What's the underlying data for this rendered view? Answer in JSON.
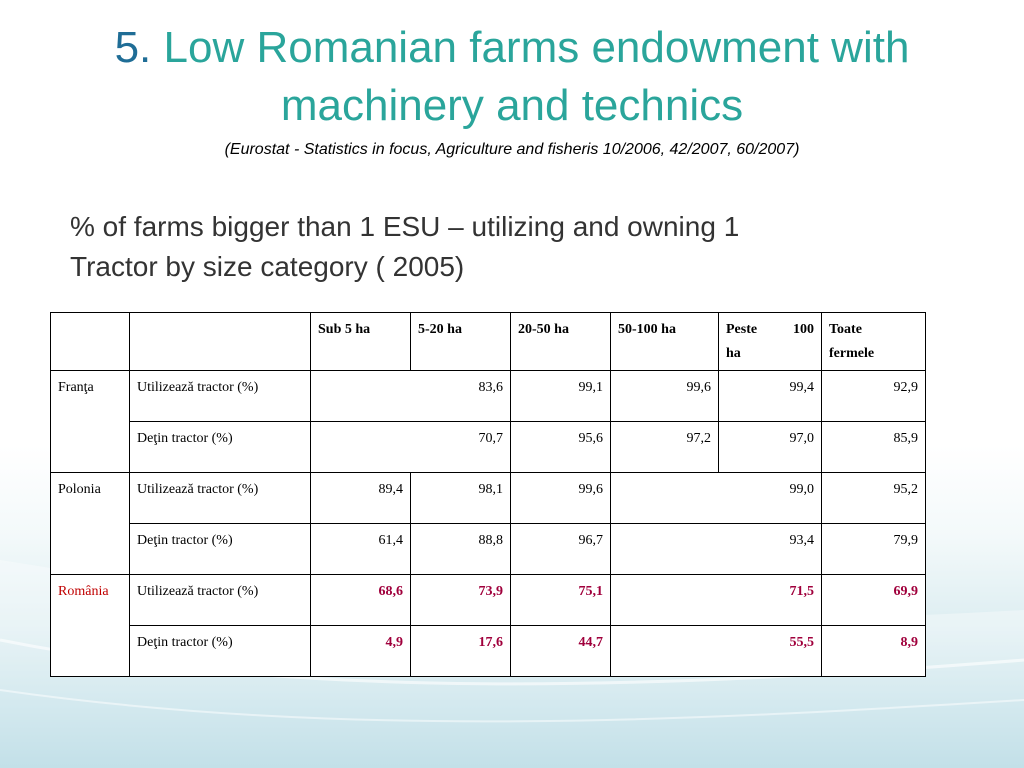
{
  "slide": {
    "title_number": "5.",
    "title_line1": "Low Romanian farms endowment with",
    "title_line2": "machinery and technics",
    "source": "(Eurostat - Statistics in focus, Agriculture and fisheris 10/2006, 42/2007, 60/2007)",
    "subtitle_line1": "% of farms bigger than 1 ESU – utilizing and owning 1",
    "subtitle_line2": "Tractor by size category ( 2005)"
  },
  "table": {
    "headers": [
      "",
      "",
      "Sub 5 ha",
      "5-20 ha",
      "20-50 ha",
      "50-100 ha",
      "Peste 100 ha",
      "Toate fermele"
    ],
    "header_peste_a": "Peste",
    "header_peste_b": "100",
    "header_peste_c": "ha",
    "header_toate_a": "Toate",
    "header_toate_b": "fermele",
    "countries": [
      {
        "name": "Franţa",
        "rows": [
          {
            "indicator": "Utilizează tractor (%)",
            "sub20": "83,6",
            "r20_50": "99,1",
            "r50_100": "99,6",
            "peste100": "99,4",
            "toate": "92,9"
          },
          {
            "indicator": "Deţin tractor (%)",
            "sub20": "70,7",
            "r20_50": "95,6",
            "r50_100": "97,2",
            "peste100": "97,0",
            "toate": "85,9"
          }
        ]
      },
      {
        "name": "Polonia",
        "rows": [
          {
            "indicator": "Utilizează tractor (%)",
            "sub5": "89,4",
            "r5_20": "98,1",
            "r20_50": "99,6",
            "over50": "99,0",
            "toate": "95,2"
          },
          {
            "indicator": "Deţin tractor (%)",
            "sub5": "61,4",
            "r5_20": "88,8",
            "r20_50": "96,7",
            "over50": "93,4",
            "toate": "79,9"
          }
        ]
      },
      {
        "name": "România",
        "rows": [
          {
            "indicator": "Utilizează tractor (%)",
            "sub5": "68,6",
            "r5_20": "73,9",
            "r20_50": "75,1",
            "over50": "71,5",
            "toate": "69,9"
          },
          {
            "indicator": "Deţin tractor (%)",
            "sub5": "4,9",
            "r5_20": "17,6",
            "r20_50": "44,7",
            "over50": "55,5",
            "toate": "8,9"
          }
        ]
      }
    ],
    "colors": {
      "title": "#2aa59b",
      "title_number": "#1f6d96",
      "romania_label": "#c00000",
      "romania_values": "#a0003c"
    }
  }
}
